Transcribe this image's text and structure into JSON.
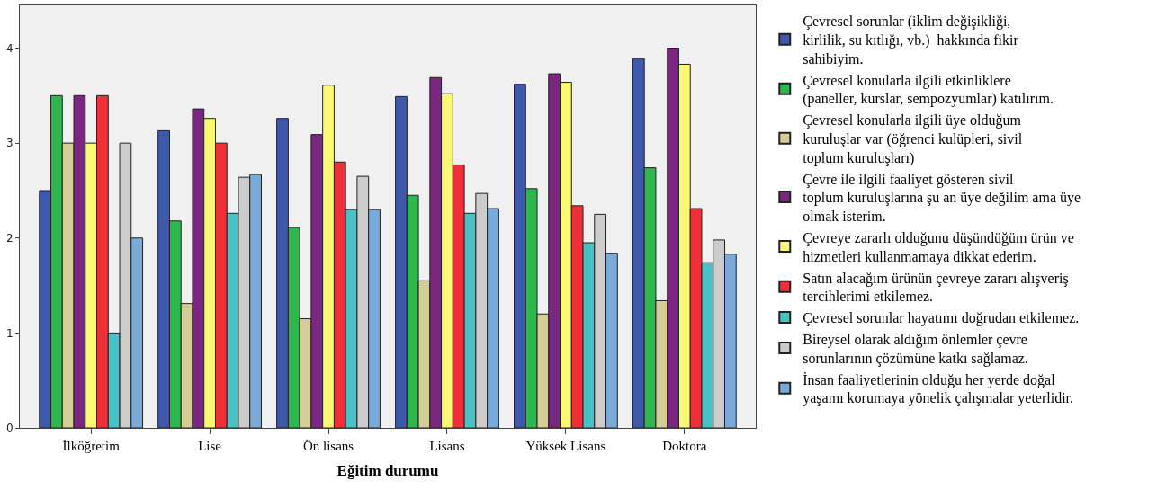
{
  "chart_data": {
    "type": "bar",
    "xlabel": "Eğitim durumu",
    "categories": [
      "İlköğretim",
      "Lise",
      "Ön lisans",
      "Lisans",
      "Yüksek Lisans",
      "Doktora"
    ],
    "series": [
      {
        "name": "Çevresel sorunlar (iklim değişikliği, kirlilik, su kıtlığı, vb.)  hakkında fikir sahibiyim.",
        "color": "#3e58ac",
        "values": [
          2.5,
          3.13,
          3.26,
          3.49,
          3.62,
          3.89
        ]
      },
      {
        "name": "Çevresel konularla ilgili etkinliklere (paneller, kurslar, sempozyumlar) katılırım.",
        "color": "#2db84d",
        "values": [
          3.5,
          2.18,
          2.11,
          2.45,
          2.52,
          2.74
        ]
      },
      {
        "name": "Çevresel konularla ilgili üye olduğum kuruluşlar var (öğrenci kulüpleri, sivil toplum kuruluşları)",
        "color": "#d4ce94",
        "values": [
          3.0,
          1.31,
          1.15,
          1.55,
          1.2,
          1.34
        ]
      },
      {
        "name": "Çevre ile ilgili faaliyet gösteren sivil toplum kuruluşlarına şu an üye değilim ama üye olmak isterim.",
        "color": "#7b2680",
        "values": [
          3.5,
          3.36,
          3.09,
          3.69,
          3.73,
          4.0
        ]
      },
      {
        "name": "Çevreye zararlı olduğunu düşündüğüm ürün ve hizmetleri kullanmamaya dikkat ederim.",
        "color": "#fbf873",
        "values": [
          3.0,
          3.26,
          3.61,
          3.52,
          3.64,
          3.83
        ]
      },
      {
        "name": "Satın alacağım ürünün çevreye zararı alışveriş tercihlerimi etkilemez.",
        "color": "#ef3038",
        "values": [
          3.5,
          3.0,
          2.8,
          2.77,
          2.34,
          2.31
        ]
      },
      {
        "name": "Çevresel sorunlar hayatımı doğrudan etkilemez.",
        "color": "#48c2c5",
        "values": [
          1.0,
          2.26,
          2.3,
          2.26,
          1.95,
          1.74
        ]
      },
      {
        "name": "Bireysel olarak aldığım önlemler çevre sorunlarının çözümüne katkı sağlamaz.",
        "color": "#cccccc",
        "values": [
          3.0,
          2.64,
          2.65,
          2.47,
          2.25,
          1.98
        ]
      },
      {
        "name": "İnsan faaliyetlerinin olduğu her yerde doğal yaşamı korumaya yönelik çalışmalar yeterlidir.",
        "color": "#7aaad9",
        "values": [
          2.0,
          2.67,
          2.3,
          2.31,
          1.84,
          1.83
        ]
      }
    ],
    "ylim": [
      0,
      4.45
    ],
    "yticks": [
      0,
      1,
      2,
      3,
      4
    ],
    "grid": false,
    "legend": "right"
  }
}
